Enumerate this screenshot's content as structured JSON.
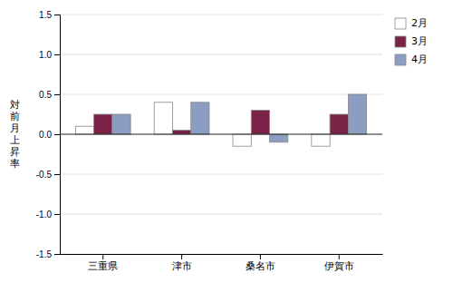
{
  "chart_data": {
    "type": "bar",
    "categories": [
      "三重県",
      "津市",
      "桑名市",
      "伊賀市"
    ],
    "series": [
      {
        "name": "2月",
        "color": "#FFFFFF",
        "values": [
          0.1,
          0.4,
          -0.15,
          -0.15
        ]
      },
      {
        "name": "3月",
        "color": "#7B2346",
        "values": [
          0.25,
          0.05,
          0.3,
          0.25
        ]
      },
      {
        "name": "4月",
        "color": "#8B9DC3",
        "values": [
          0.25,
          0.4,
          -0.1,
          0.5
        ]
      }
    ],
    "ylabel": "対\n前\n月\n上\n昇\n率",
    "ylim": [
      -1.5,
      1.5
    ],
    "yticks": [
      -1.5,
      {
        "value": -1.0,
        "label": "-1.0"
      },
      -0.5,
      {
        "value": 0.0,
        "label": "0.0"
      },
      0.5,
      {
        "value": 1.0,
        "label": "1.0"
      },
      1.5
    ],
    "grid": true,
    "legend": "right"
  }
}
